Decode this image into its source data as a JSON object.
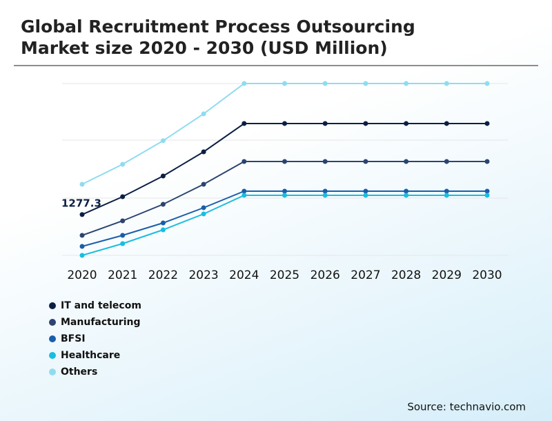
{
  "chart_data": {
    "type": "line",
    "title": "Global Recruitment Process Outsourcing Market size 2020 - 2030 (USD Million)",
    "title_lines": [
      "Global Recruitment Process Outsourcing",
      "Market size 2020 - 2030 (USD Million)"
    ],
    "categories": [
      "2020",
      "2021",
      "2022",
      "2023",
      "2024",
      "2025",
      "2026",
      "2027",
      "2028",
      "2029",
      "2030"
    ],
    "series": [
      {
        "name": "IT and telecom",
        "color": "#0b1f45",
        "values": [
          1277.3,
          1649,
          2079,
          2581,
          3169,
          3169,
          3169,
          3169,
          3169,
          3169,
          3169
        ],
        "value_labels": [
          "1277.3",
          null,
          null,
          null,
          null,
          null,
          null,
          null,
          null,
          null,
          null
        ]
      },
      {
        "name": "Manufacturing",
        "color": "#2b4470",
        "values": [
          846,
          1147,
          1491,
          1907,
          2380,
          2380,
          2380,
          2380,
          2380,
          2380,
          2380
        ]
      },
      {
        "name": "BFSI",
        "color": "#1a5ea8",
        "values": [
          617,
          846,
          1104,
          1420,
          1764,
          1764,
          1764,
          1764,
          1764,
          1764,
          1764
        ]
      },
      {
        "name": "Healthcare",
        "color": "#19bde0",
        "values": [
          430,
          674,
          961,
          1291,
          1678,
          1678,
          1678,
          1678,
          1678,
          1678,
          1678
        ]
      },
      {
        "name": "Others",
        "color": "#8fdcf0",
        "values": [
          1907,
          2323,
          2811,
          3370,
          4000,
          4000,
          4000,
          4000,
          4000,
          4000,
          4000
        ]
      }
    ],
    "ylim": [
      0,
      4000
    ],
    "yticks": [
      430,
      1620,
      2825,
      4000
    ],
    "grid": true,
    "source": "Source: technavio.com"
  }
}
